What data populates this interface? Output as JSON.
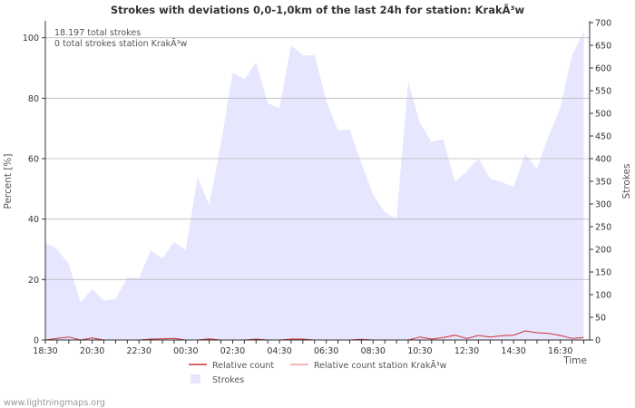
{
  "chart_data": {
    "type": "area",
    "title": "Strokes with deviations 0,0-1,0km of the last 24h for station: KrakÃ³w",
    "annotations": [
      "18.197 total strokes",
      "0 total strokes station KrakÃ³w"
    ],
    "ylabel_left": "Percent   [%]",
    "ylabel_right": "Strokes",
    "xlabel": "Time",
    "left_axis": {
      "range": [
        0,
        105
      ],
      "ticks": [
        0,
        20,
        40,
        60,
        80,
        100
      ]
    },
    "right_axis": {
      "range": [
        0,
        700
      ],
      "ticks": [
        0,
        50,
        100,
        150,
        200,
        250,
        300,
        350,
        400,
        450,
        500,
        550,
        600,
        650,
        700
      ]
    },
    "x_range": [
      0,
      46.5
    ],
    "x_tick_labels": [
      "18:30",
      "20:30",
      "22:30",
      "00:30",
      "02:30",
      "04:30",
      "06:30",
      "08:30",
      "10:30",
      "12:30",
      "14:30",
      "16:30"
    ],
    "x_tick_positions": [
      0,
      4,
      8,
      12,
      16,
      20,
      24,
      28,
      32,
      36,
      40,
      44
    ],
    "grid": true,
    "series": [
      {
        "name": "Strokes",
        "axis": "right",
        "kind": "area",
        "color": "#e6e6ff",
        "x": [
          0,
          1,
          2,
          3,
          4,
          5,
          6,
          7,
          8,
          9,
          10,
          11,
          12,
          13,
          14,
          15,
          16,
          17,
          18,
          19,
          20,
          21,
          22,
          23,
          24,
          25,
          26,
          27,
          28,
          29,
          30,
          31,
          32,
          33,
          34,
          35,
          36,
          37,
          38,
          39,
          40,
          41,
          42,
          43,
          44,
          45,
          46
        ],
        "values": [
          215,
          200,
          168,
          82,
          112,
          87,
          90,
          138,
          136,
          198,
          180,
          217,
          198,
          360,
          298,
          432,
          590,
          575,
          612,
          522,
          512,
          650,
          628,
          628,
          528,
          462,
          464,
          390,
          320,
          282,
          268,
          570,
          478,
          437,
          443,
          348,
          372,
          400,
          356,
          348,
          338,
          410,
          377,
          450,
          512,
          628,
          680
        ]
      },
      {
        "name": "Relative count",
        "axis": "left",
        "kind": "line",
        "color": "#cc3333",
        "x": [
          0,
          1,
          2,
          3,
          4,
          5,
          6,
          7,
          8,
          9,
          10,
          11,
          12,
          13,
          14,
          15,
          16,
          17,
          18,
          19,
          20,
          21,
          22,
          23,
          24,
          25,
          26,
          27,
          28,
          29,
          30,
          31,
          32,
          33,
          34,
          35,
          36,
          37,
          38,
          39,
          40,
          41,
          42,
          43,
          44,
          45,
          46
        ],
        "values": [
          0,
          0.5,
          1,
          0,
          0.7,
          0,
          0,
          0,
          0,
          0.3,
          0.4,
          0.5,
          0,
          0,
          0.4,
          0,
          0,
          0,
          0.3,
          0,
          0,
          0.3,
          0.3,
          0,
          0,
          0,
          0,
          0.2,
          0,
          0,
          0,
          0,
          1,
          0.3,
          0.8,
          1.6,
          0.5,
          1.5,
          1.0,
          1.4,
          1.6,
          3.0,
          2.4,
          2.2,
          1.5,
          0.5,
          0.8
        ]
      },
      {
        "name": "Relative count station KrakÃ³w",
        "axis": "left",
        "kind": "line",
        "color": "#f0a0a0",
        "x": [
          0,
          46
        ],
        "values": [
          0,
          0
        ]
      }
    ],
    "legend": [
      {
        "label": "Relative count",
        "color": "#cc3333",
        "kind": "line"
      },
      {
        "label": "Relative count station KrakÃ³w",
        "color": "#f0a0a0",
        "kind": "line"
      },
      {
        "label": "Strokes",
        "color": "#e6e6ff",
        "kind": "swatch"
      }
    ]
  },
  "footer": {
    "credit": "www.lightningmaps.org"
  }
}
